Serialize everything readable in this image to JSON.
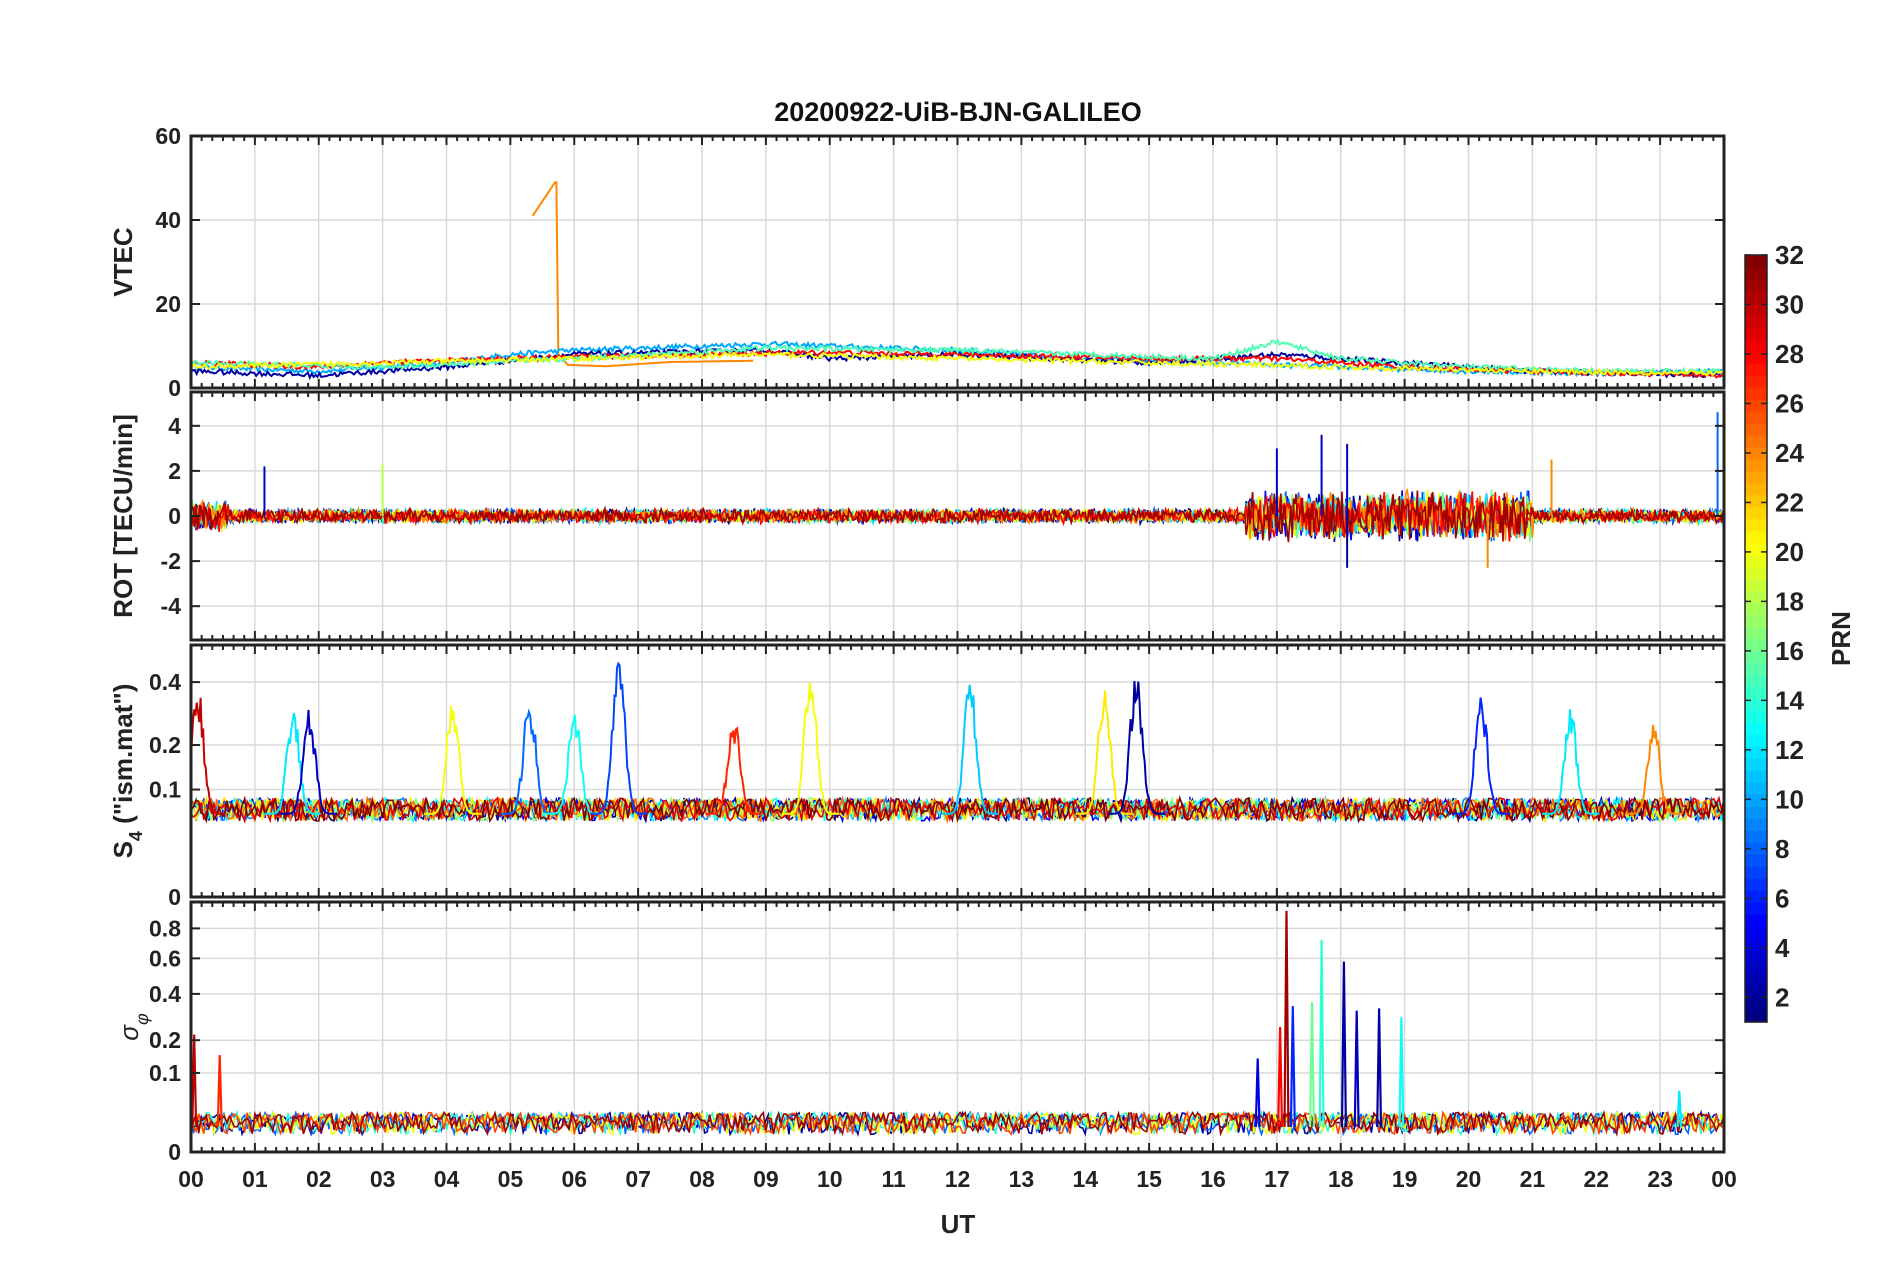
{
  "figure": {
    "title": "20200922-UiB-BJN-GALILEO"
  },
  "chart_data": {
    "type": "line",
    "title": "20200922-UiB-BJN-GALILEO",
    "xlabel": "UT",
    "x_tick_labels": [
      "00",
      "01",
      "02",
      "03",
      "04",
      "05",
      "06",
      "07",
      "08",
      "09",
      "10",
      "11",
      "12",
      "13",
      "14",
      "15",
      "16",
      "17",
      "18",
      "19",
      "20",
      "21",
      "22",
      "23",
      "00"
    ],
    "xlim_hours": [
      0,
      24
    ],
    "grid": true,
    "colorbar": {
      "label": "PRN",
      "colormap": "jet",
      "range": [
        1,
        32
      ],
      "ticks": [
        2,
        4,
        6,
        8,
        10,
        12,
        14,
        16,
        18,
        20,
        22,
        24,
        26,
        28,
        30,
        32
      ]
    },
    "panels": [
      {
        "id": "vtec",
        "ylabel": "VTEC",
        "ylim": [
          0,
          60
        ],
        "yticks": [
          0,
          20,
          40,
          60
        ],
        "description_series": [
          {
            "prn": 24,
            "points": [
              [
                5.35,
                41
              ],
              [
                5.7,
                49
              ],
              [
                5.72,
                49
              ],
              [
                5.75,
                8
              ],
              [
                5.9,
                5.5
              ],
              [
                6.5,
                5.2
              ],
              [
                7.5,
                6.2
              ],
              [
                8.8,
                6.5
              ]
            ]
          },
          {
            "prn": 10,
            "points": [
              [
                0,
                5
              ],
              [
                2,
                4
              ],
              [
                4,
                6
              ],
              [
                5,
                8
              ],
              [
                6,
                9
              ],
              [
                8,
                10
              ],
              [
                9,
                10.5
              ],
              [
                10,
                10
              ],
              [
                12,
                9
              ],
              [
                14,
                7
              ],
              [
                16,
                6
              ],
              [
                18,
                5
              ],
              [
                20,
                4
              ],
              [
                22,
                3.5
              ],
              [
                24,
                4
              ]
            ]
          },
          {
            "prn": 2,
            "points": [
              [
                0,
                4
              ],
              [
                2,
                3
              ],
              [
                4,
                5
              ],
              [
                6,
                8
              ],
              [
                9,
                9
              ],
              [
                10,
                7
              ],
              [
                12,
                8
              ],
              [
                15,
                6
              ],
              [
                17,
                8
              ],
              [
                19,
                6
              ],
              [
                21,
                4
              ],
              [
                24,
                3
              ]
            ]
          },
          {
            "prn": 28,
            "points": [
              [
                0,
                6
              ],
              [
                2,
                5
              ],
              [
                3,
                6
              ],
              [
                5,
                7
              ],
              [
                8,
                8
              ],
              [
                10,
                8.5
              ],
              [
                12,
                8
              ],
              [
                15,
                7
              ],
              [
                17,
                7
              ],
              [
                19,
                5
              ],
              [
                21,
                4
              ],
              [
                24,
                3
              ]
            ]
          },
          {
            "prn": 15,
            "points": [
              [
                0,
                6
              ],
              [
                3,
                5
              ],
              [
                6,
                7
              ],
              [
                9,
                9.5
              ],
              [
                12,
                9
              ],
              [
                14,
                8
              ],
              [
                16,
                7
              ],
              [
                17,
                11
              ],
              [
                18,
                7
              ],
              [
                20,
                5
              ],
              [
                22,
                4
              ],
              [
                24,
                4
              ]
            ]
          },
          {
            "prn": 20,
            "points": [
              [
                0,
                5
              ],
              [
                3,
                6
              ],
              [
                6,
                7
              ],
              [
                9,
                8
              ],
              [
                12,
                7
              ],
              [
                15,
                6
              ],
              [
                18,
                5
              ],
              [
                21,
                4
              ],
              [
                24,
                3.5
              ]
            ]
          }
        ]
      },
      {
        "id": "rot",
        "ylabel": "ROT [TECU/min]",
        "ylim": [
          -5.5,
          5.5
        ],
        "yticks": [
          -4,
          -2,
          0,
          2,
          4
        ],
        "peaks": [
          {
            "ut": 1.15,
            "value": 2.2,
            "prn": 3
          },
          {
            "ut": 3.0,
            "value": 2.3,
            "prn": 18
          },
          {
            "ut": 17.0,
            "value": 3.0,
            "prn": 3
          },
          {
            "ut": 17.7,
            "value": 3.6,
            "prn": 3
          },
          {
            "ut": 18.1,
            "value": 3.2,
            "prn": 3
          },
          {
            "ut": 18.1,
            "value": -2.3,
            "prn": 2
          },
          {
            "ut": 20.3,
            "value": -2.3,
            "prn": 24
          },
          {
            "ut": 21.3,
            "value": 2.5,
            "prn": 24
          },
          {
            "ut": 23.9,
            "value": 4.6,
            "prn": 8
          }
        ]
      },
      {
        "id": "s4",
        "ylabel": "S4 (\"ism.mat\")",
        "ylabel_main": "S",
        "ylabel_sub": "4",
        "ylabel_rest": " (\"ism.mat\")",
        "scale": "sqrt",
        "ylim": [
          0,
          0.55
        ],
        "yticks": [
          0,
          0.1,
          0.2,
          0.4
        ],
        "peaks": [
          {
            "ut": 0.1,
            "value": 0.4,
            "prn": 30
          },
          {
            "ut": 1.6,
            "value": 0.33,
            "prn": 12
          },
          {
            "ut": 1.85,
            "value": 0.33,
            "prn": 3
          },
          {
            "ut": 4.1,
            "value": 0.36,
            "prn": 20
          },
          {
            "ut": 5.3,
            "value": 0.36,
            "prn": 8
          },
          {
            "ut": 6.0,
            "value": 0.32,
            "prn": 13
          },
          {
            "ut": 6.7,
            "value": 0.48,
            "prn": 7
          },
          {
            "ut": 8.5,
            "value": 0.3,
            "prn": 27
          },
          {
            "ut": 9.7,
            "value": 0.45,
            "prn": 20
          },
          {
            "ut": 12.2,
            "value": 0.42,
            "prn": 11
          },
          {
            "ut": 14.3,
            "value": 0.38,
            "prn": 21
          },
          {
            "ut": 14.8,
            "value": 0.45,
            "prn": 2
          },
          {
            "ut": 20.2,
            "value": 0.36,
            "prn": 6
          },
          {
            "ut": 21.6,
            "value": 0.31,
            "prn": 12
          },
          {
            "ut": 22.9,
            "value": 0.27,
            "prn": 24
          }
        ]
      },
      {
        "id": "sigma_phi",
        "ylabel": "σ φ",
        "ylabel_main": "σ",
        "ylabel_sub": "φ",
        "scale": "sqrt",
        "ylim": [
          0,
          1.0
        ],
        "yticks": [
          0,
          0.1,
          0.2,
          0.4,
          0.6,
          0.8
        ],
        "peaks": [
          {
            "ut": 0.05,
            "value": 0.22,
            "prn": 30
          },
          {
            "ut": 0.45,
            "value": 0.15,
            "prn": 27
          },
          {
            "ut": 16.7,
            "value": 0.14,
            "prn": 4
          },
          {
            "ut": 17.05,
            "value": 0.25,
            "prn": 28
          },
          {
            "ut": 17.15,
            "value": 0.93,
            "prn": 31
          },
          {
            "ut": 17.25,
            "value": 0.34,
            "prn": 6
          },
          {
            "ut": 17.55,
            "value": 0.36,
            "prn": 16
          },
          {
            "ut": 17.7,
            "value": 0.72,
            "prn": 14
          },
          {
            "ut": 18.05,
            "value": 0.58,
            "prn": 2
          },
          {
            "ut": 18.25,
            "value": 0.32,
            "prn": 3
          },
          {
            "ut": 18.6,
            "value": 0.33,
            "prn": 2
          },
          {
            "ut": 18.95,
            "value": 0.29,
            "prn": 13
          },
          {
            "ut": 23.3,
            "value": 0.06,
            "prn": 12
          }
        ]
      }
    ]
  }
}
